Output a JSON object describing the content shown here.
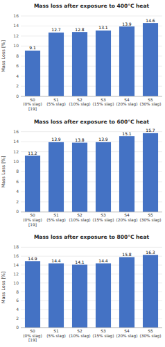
{
  "chart_data": [
    {
      "type": "bar",
      "title": "Mass loss after exposure to 400°C heat",
      "ylabel": "Mass Loss [%]",
      "categories": [
        "S0 (0% slag)\n[19]",
        "S1 (5% slag)",
        "S2 (10% slag)",
        "S3 (15% slag)",
        "S4 (20% slag)",
        "S5 (30% slag)"
      ],
      "values": [
        9.1,
        12.7,
        12.8,
        13.1,
        13.9,
        14.6
      ],
      "color": "#4472C4",
      "ylim": [
        0,
        16
      ],
      "yticks": [
        0,
        2,
        4,
        6,
        8,
        10,
        12,
        14,
        16
      ],
      "grid": true,
      "data_labels": true
    },
    {
      "type": "bar",
      "title": "Mass loss after exposure to 600°C heat",
      "ylabel": "Mass Loss [%]",
      "categories": [
        "S0 (0% slag)\n[19]",
        "S1 (5% slag)",
        "S2 (10% slag)",
        "S3 (15% slag)",
        "S4 (20% slag)",
        "S5 (30% slag)"
      ],
      "values": [
        11.2,
        13.9,
        13.8,
        13.9,
        15.1,
        15.7
      ],
      "color": "#4472C4",
      "ylim": [
        0,
        16
      ],
      "yticks": [
        0,
        2,
        4,
        6,
        8,
        10,
        12,
        14,
        16
      ],
      "grid": true,
      "data_labels": true
    },
    {
      "type": "bar",
      "title": "Mass loss after exposure to 800°C heat",
      "ylabel": "Mass Loss [%]",
      "categories": [
        "S0 (0% slag)\n[19]",
        "S1 (5% slag)",
        "S2 (10% slag)",
        "S3 (15% slag)",
        "S4 (20% slag)",
        "S5 (30% slag)"
      ],
      "values": [
        14.9,
        14.4,
        14.1,
        14.4,
        15.8,
        16.3
      ],
      "color": "#4472C4",
      "ylim": [
        0,
        18
      ],
      "yticks": [
        0,
        2,
        4,
        6,
        8,
        10,
        12,
        14,
        16,
        18
      ],
      "grid": true,
      "data_labels": true
    }
  ]
}
